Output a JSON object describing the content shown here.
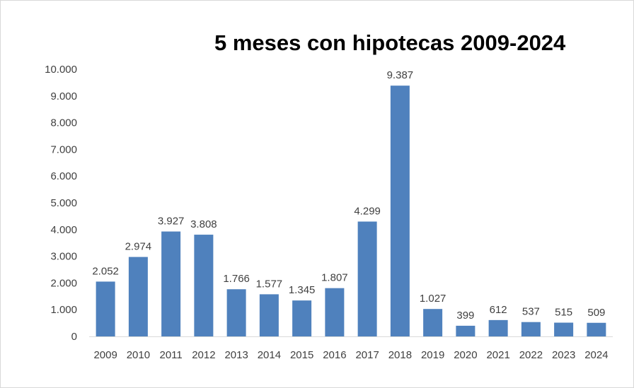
{
  "chart_data": {
    "type": "bar",
    "title": "5 meses con hipotecas 2009-2024",
    "categories": [
      "2009",
      "2010",
      "2011",
      "2012",
      "2013",
      "2014",
      "2015",
      "2016",
      "2017",
      "2018",
      "2019",
      "2020",
      "2021",
      "2022",
      "2023",
      "2024"
    ],
    "values": [
      2052,
      2974,
      3927,
      3808,
      1766,
      1577,
      1345,
      1807,
      4299,
      9387,
      1027,
      399,
      612,
      537,
      515,
      509
    ],
    "data_labels": [
      "2.052",
      "2.974",
      "3.927",
      "3.808",
      "1.766",
      "1.577",
      "1.345",
      "1.807",
      "4.299",
      "9.387",
      "1.027",
      "399",
      "612",
      "537",
      "515",
      "509"
    ],
    "y_ticks": [
      0,
      1000,
      2000,
      3000,
      4000,
      5000,
      6000,
      7000,
      8000,
      9000,
      10000
    ],
    "y_tick_labels": [
      "0",
      "1.000",
      "2.000",
      "3.000",
      "4.000",
      "5.000",
      "6.000",
      "7.000",
      "8.000",
      "9.000",
      "10.000"
    ],
    "ylim": [
      0,
      10000
    ],
    "xlabel": "",
    "ylabel": "",
    "grid": false,
    "legend": "none",
    "bar_color": "#4f81bd"
  }
}
